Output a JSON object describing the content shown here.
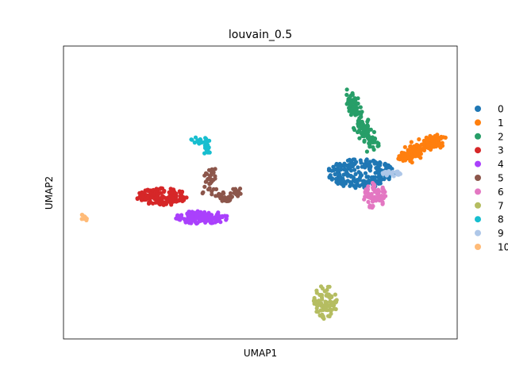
{
  "chart_data": {
    "type": "scatter",
    "title": "louvain_0.5",
    "xlabel": "UMAP1",
    "ylabel": "UMAP2",
    "xlim": [
      0,
      100
    ],
    "ylim": [
      0,
      100
    ],
    "ticks_visible": false,
    "grid": false,
    "legend_position": "right",
    "series": [
      {
        "name": "0",
        "color": "#1f77b4",
        "shape": "ellipse",
        "cx": 75.5,
        "cy": 56.5,
        "rx": 8.5,
        "ry": 5.0,
        "n": 230
      },
      {
        "name": "1",
        "color": "#ff7f0e",
        "shape": "polyline",
        "path": [
          [
            86.0,
            62.0
          ],
          [
            89.0,
            64.0
          ],
          [
            93.0,
            66.5
          ],
          [
            95.0,
            68.0
          ]
        ],
        "spread": 2.0,
        "n": 170
      },
      {
        "name": "2",
        "color": "#279e68",
        "shape": "polyline",
        "path": [
          [
            72.5,
            83.5
          ],
          [
            74.0,
            78.5
          ],
          [
            76.0,
            71.5
          ],
          [
            79.0,
            66.0
          ]
        ],
        "spread": 1.8,
        "n": 160
      },
      {
        "name": "3",
        "color": "#d62728",
        "shape": "ellipse",
        "cx": 25.0,
        "cy": 48.5,
        "rx": 6.5,
        "ry": 3.0,
        "n": 150
      },
      {
        "name": "4",
        "color": "#aa40fc",
        "shape": "ellipse",
        "cx": 35.0,
        "cy": 41.5,
        "rx": 7.0,
        "ry": 2.2,
        "n": 130
      },
      {
        "name": "5",
        "color": "#8c564b",
        "shape": "polyline",
        "path": [
          [
            37.5,
            58.0
          ],
          [
            36.5,
            51.5
          ],
          [
            41.0,
            47.5
          ],
          [
            45.0,
            50.5
          ]
        ],
        "spread": 1.5,
        "n": 85
      },
      {
        "name": "6",
        "color": "#e377c2",
        "shape": "ellipse",
        "cx": 79.0,
        "cy": 49.0,
        "rx": 2.8,
        "ry": 4.5,
        "n": 70
      },
      {
        "name": "7",
        "color": "#b5bd61",
        "shape": "ellipse",
        "cx": 66.5,
        "cy": 12.5,
        "rx": 3.0,
        "ry": 6.0,
        "n": 75
      },
      {
        "name": "8",
        "color": "#17becf",
        "shape": "polyline",
        "path": [
          [
            33.0,
            68.0
          ],
          [
            36.0,
            67.5
          ],
          [
            37.0,
            63.5
          ]
        ],
        "spread": 0.9,
        "n": 40
      },
      {
        "name": "9",
        "color": "#aec7e8",
        "shape": "ellipse",
        "cx": 83.5,
        "cy": 56.5,
        "rx": 2.5,
        "ry": 1.0,
        "n": 22
      },
      {
        "name": "10",
        "color": "#ffbb78",
        "shape": "polyline",
        "path": [
          [
            4.5,
            43.0
          ],
          [
            6.0,
            40.0
          ]
        ],
        "spread": 0.6,
        "n": 10
      }
    ]
  }
}
